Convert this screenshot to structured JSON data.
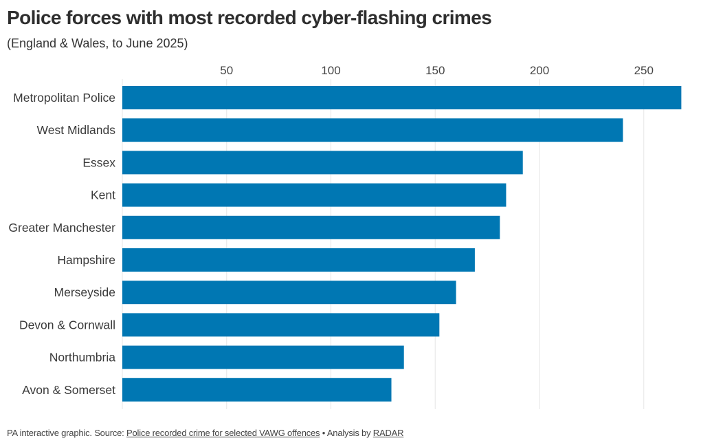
{
  "chart_data": {
    "type": "bar",
    "orientation": "horizontal",
    "title": "Police forces with most recorded cyber-flashing crimes",
    "subtitle": "(England & Wales, to June 2025)",
    "xlabel": "",
    "ylabel": "",
    "xlim": [
      0,
      270
    ],
    "ticks": [
      50,
      100,
      150,
      200,
      250
    ],
    "tick_labels": [
      "50",
      "100",
      "150",
      "200",
      "250"
    ],
    "grid": true,
    "bar_color": "#0077b3",
    "categories": [
      "Metropolitan Police",
      "West Midlands",
      "Essex",
      "Kent",
      "Greater Manchester",
      "Hampshire",
      "Merseyside",
      "Devon & Cornwall",
      "Northumbria",
      "Avon & Somerset"
    ],
    "values": [
      268,
      240,
      192,
      184,
      181,
      169,
      160,
      152,
      135,
      129
    ]
  },
  "footer": {
    "prefix": "PA interactive graphic. Source: ",
    "source_link": "Police recorded crime for selected VAWG offences",
    "middle": " • Analysis by ",
    "analysis_link": "RADAR"
  }
}
